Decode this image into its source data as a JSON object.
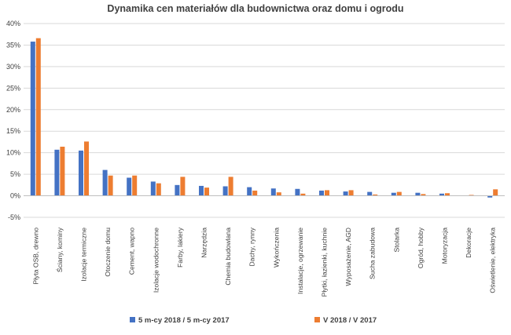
{
  "chart_data": {
    "type": "bar",
    "title": "Dynamika cen materiałów dla budownictwa oraz domu i ogrodu",
    "xlabel": "",
    "ylabel": "",
    "ylim": [
      -0.05,
      0.4
    ],
    "yticks": [
      "-5%",
      "0%",
      "5%",
      "10%",
      "15%",
      "20%",
      "25%",
      "30%",
      "35%",
      "40%"
    ],
    "grid": true,
    "legend_position": "bottom",
    "categories": [
      "Płyta OSB, drewno",
      "Ściany, kominy",
      "Izolacje termiczne",
      "Otoczenie domu",
      "Cement, wapno",
      "Izolacje wodochronne",
      "Farby, lakiery",
      "Narzędzia",
      "Chemia budowlana",
      "Dachy, rynny",
      "Wykończenia",
      "Instalacje, ogrzewanie",
      "Płytki, łazienki, kuchnie",
      "Wyposażenie, AGD",
      "Sucha zabudowa",
      "Stolarka",
      "Ogród, hobby",
      "Motoryzacja",
      "Dekoracje",
      "Oświetlenie, elektryka"
    ],
    "series": [
      {
        "name": "5 m-cy 2018 / 5 m-cy 2017",
        "color": "#4472C4",
        "values": [
          0.358,
          0.107,
          0.105,
          0.06,
          0.042,
          0.033,
          0.025,
          0.023,
          0.022,
          0.02,
          0.017,
          0.016,
          0.012,
          0.01,
          0.009,
          0.007,
          0.007,
          0.005,
          0.0,
          -0.004
        ]
      },
      {
        "name": "V 2018 / V 2017",
        "color": "#ED7D31",
        "values": [
          0.366,
          0.114,
          0.126,
          0.047,
          0.047,
          0.029,
          0.044,
          0.019,
          0.044,
          0.012,
          0.008,
          0.005,
          0.013,
          0.013,
          0.003,
          0.009,
          0.004,
          0.006,
          0.002,
          0.015
        ]
      }
    ]
  }
}
